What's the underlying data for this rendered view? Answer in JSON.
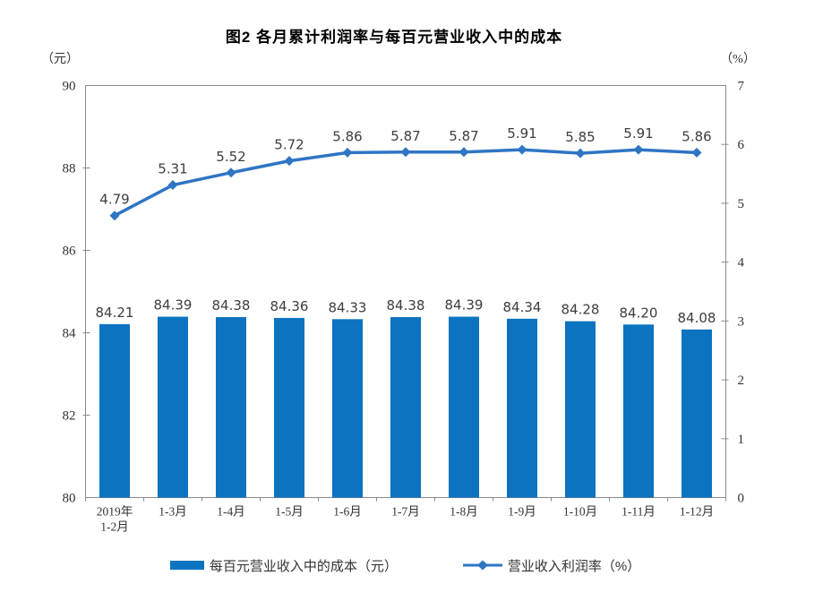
{
  "title": "图2 各月累计利润率与每百元营业收入中的成本",
  "chart_data": {
    "type": "combo-bar-line",
    "title": "图2 各月累计利润率与每百元营业收入中的成本",
    "categories": [
      "2019年\n1-2月",
      "1-3月",
      "1-4月",
      "1-5月",
      "1-6月",
      "1-7月",
      "1-8月",
      "1-9月",
      "1-10月",
      "1-11月",
      "1-12月"
    ],
    "series": [
      {
        "name": "每百元营业收入中的成本（元）",
        "type": "bar",
        "axis": "left",
        "color": "#0b73c0",
        "values": [
          84.21,
          84.39,
          84.38,
          84.36,
          84.33,
          84.38,
          84.39,
          84.34,
          84.28,
          84.2,
          84.08
        ]
      },
      {
        "name": "营业收入利润率（%）",
        "type": "line",
        "axis": "right",
        "marker": "diamond",
        "color": "#2e75c4",
        "values": [
          4.79,
          5.31,
          5.52,
          5.72,
          5.86,
          5.87,
          5.87,
          5.91,
          5.85,
          5.91,
          5.86
        ]
      }
    ],
    "left_axis": {
      "unit": "（元）",
      "ticks": [
        90,
        88,
        86,
        84,
        82,
        80
      ],
      "ylim": [
        80,
        90
      ]
    },
    "right_axis": {
      "unit": "（%）",
      "ticks": [
        7,
        6,
        5,
        4,
        3,
        2,
        1,
        0
      ],
      "ylim": [
        0,
        7
      ]
    },
    "grid": false,
    "legend_position": "bottom",
    "value_label_decimals": 2
  },
  "legend": {
    "items": [
      {
        "label": "每百元营业收入中的成本（元）",
        "marker": "bar"
      },
      {
        "label": "营业收入利润率（%）",
        "marker": "line-diamond"
      }
    ]
  },
  "colors": {
    "bar": "#0b73c0",
    "line": "#2e75c4",
    "axis": "#8a8a8a",
    "tick_text": "#333333",
    "value_label_text": "#3d3d3d",
    "background": "#ffffff"
  }
}
